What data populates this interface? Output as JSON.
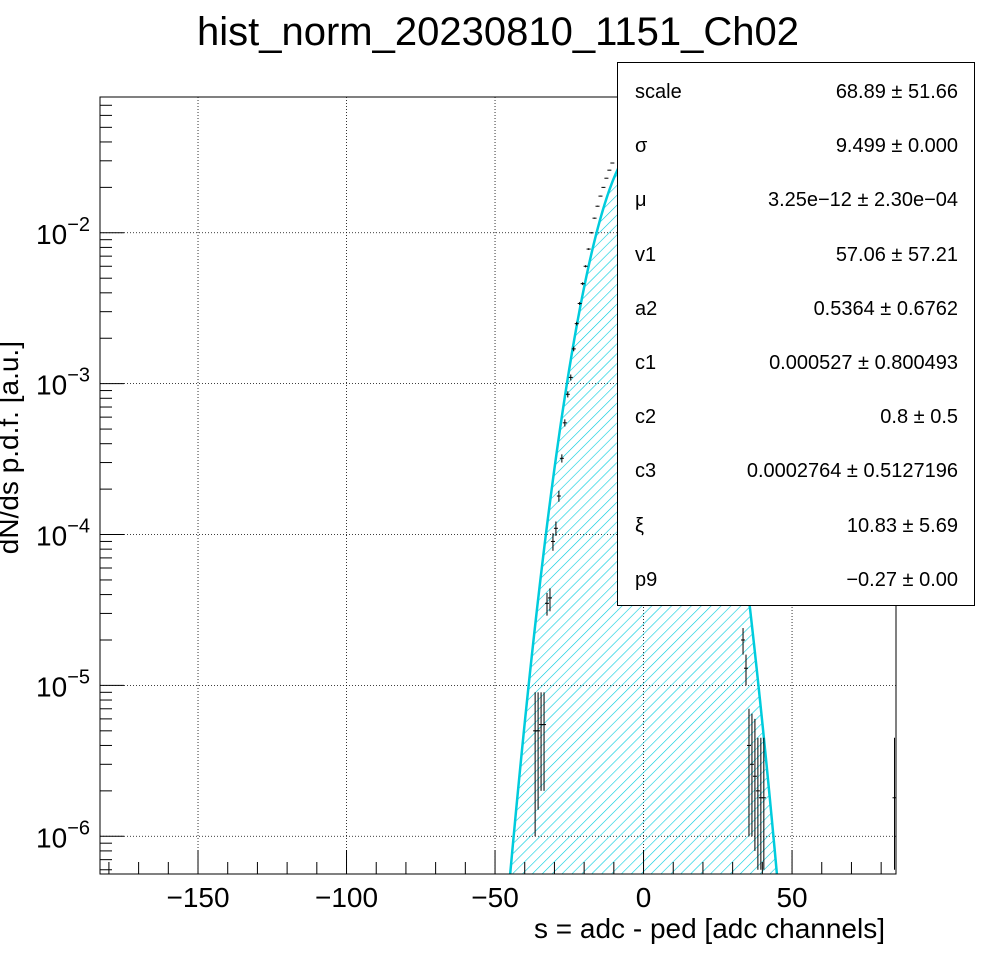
{
  "chart_data": {
    "type": "line",
    "title": "hist_norm_20230810_1151_Ch02",
    "xlabel": "s = adc - ped [adc channels]",
    "ylabel": "dN/ds p.d.f. [a.u.]",
    "xlim": [
      -183,
      85
    ],
    "ylim_log10": [
      -6.25,
      -1.1
    ],
    "log_y": true,
    "grid": true,
    "x_ticks": [
      -150,
      -100,
      -50,
      0,
      50
    ],
    "x_tick_labels": [
      "−150",
      "−100",
      "−50",
      "0",
      "50"
    ],
    "y_ticks": [
      {
        "base": "10",
        "exp": "−6",
        "log": -6
      },
      {
        "base": "10",
        "exp": "−5",
        "log": -5
      },
      {
        "base": "10",
        "exp": "−4",
        "log": -4
      },
      {
        "base": "10",
        "exp": "−3",
        "log": -3
      },
      {
        "base": "10",
        "exp": "−2",
        "log": -2
      }
    ],
    "fit_curve": {
      "type": "gaussian",
      "peak": 0.04,
      "mu": 0,
      "sigma": 9.499,
      "color": "#00ccdd",
      "fill": "hatched"
    },
    "data_points": [
      {
        "x": -36.5,
        "y": 5e-06,
        "lo": 1e-06,
        "hi": 9e-06
      },
      {
        "x": -35.5,
        "y": 5e-06,
        "lo": 1.5e-06,
        "hi": 9e-06
      },
      {
        "x": -34.5,
        "y": 5.5e-06,
        "lo": 2e-06,
        "hi": 9e-06
      },
      {
        "x": -33.5,
        "y": 5.5e-06,
        "lo": 2e-06,
        "hi": 9e-06
      },
      {
        "x": -32.5,
        "y": 3.5e-05,
        "lo": 2.9e-05,
        "hi": 4.1e-05
      },
      {
        "x": -31.5,
        "y": 3.8e-05,
        "lo": 3.1e-05,
        "hi": 4.4e-05
      },
      {
        "x": -30.5,
        "y": 9e-05,
        "lo": 7.8e-05,
        "hi": 0.000102
      },
      {
        "x": -29.5,
        "y": 0.00011,
        "lo": 9.8e-05,
        "hi": 0.000122
      },
      {
        "x": -28.5,
        "y": 0.00018,
        "lo": 0.000165,
        "hi": 0.000195
      },
      {
        "x": -27.5,
        "y": 0.00032,
        "lo": 0.0003,
        "hi": 0.00034
      },
      {
        "x": -26.5,
        "y": 0.00055,
        "lo": 0.00052,
        "hi": 0.00058
      },
      {
        "x": -25.5,
        "y": 0.00085,
        "lo": 0.00081,
        "hi": 0.00089
      },
      {
        "x": -24.5,
        "y": 0.0011,
        "lo": 0.00105,
        "hi": 0.00115
      },
      {
        "x": -23.5,
        "y": 0.0017,
        "lo": 0.00164,
        "hi": 0.00176
      },
      {
        "x": -22.5,
        "y": 0.0025,
        "lo": 0.00243,
        "hi": 0.00257
      },
      {
        "x": -21.5,
        "y": 0.0034,
        "lo": 0.00332,
        "hi": 0.00348
      },
      {
        "x": -20.5,
        "y": 0.0046,
        "lo": 0.0045,
        "hi": 0.0047
      },
      {
        "x": -19.5,
        "y": 0.006,
        "lo": 0.0059,
        "hi": 0.0061
      },
      {
        "x": -18.5,
        "y": 0.0078,
        "lo": 0.0077,
        "hi": 0.0079
      },
      {
        "x": -17.5,
        "y": 0.01,
        "lo": 0.0099,
        "hi": 0.0101
      },
      {
        "x": -16.5,
        "y": 0.0125,
        "lo": 0.0124,
        "hi": 0.0126
      },
      {
        "x": -15.5,
        "y": 0.015,
        "lo": 0.0149,
        "hi": 0.0151
      },
      {
        "x": -14.5,
        "y": 0.0175,
        "lo": 0.0174,
        "hi": 0.0176
      },
      {
        "x": -13.5,
        "y": 0.02,
        "lo": 0.0199,
        "hi": 0.0201
      },
      {
        "x": -12.5,
        "y": 0.023,
        "lo": 0.0229,
        "hi": 0.0231
      },
      {
        "x": -11.5,
        "y": 0.026,
        "lo": 0.0259,
        "hi": 0.0261
      },
      {
        "x": -10.5,
        "y": 0.029,
        "lo": 0.0289,
        "hi": 0.0291
      },
      {
        "x": 33.5,
        "y": 2e-05,
        "lo": 1.6e-05,
        "hi": 2.4e-05
      },
      {
        "x": 34.5,
        "y": 1.3e-05,
        "lo": 1e-05,
        "hi": 1.6e-05
      },
      {
        "x": 35.5,
        "y": 4e-06,
        "lo": 1e-06,
        "hi": 7e-06
      },
      {
        "x": 36.5,
        "y": 3e-06,
        "lo": 1e-06,
        "hi": 6.5e-06
      },
      {
        "x": 37.5,
        "y": 2.5e-06,
        "lo": 8e-07,
        "hi": 6e-06
      },
      {
        "x": 38.5,
        "y": 2e-06,
        "lo": 6e-07,
        "hi": 4.5e-06
      },
      {
        "x": 39.5,
        "y": 1.8e-06,
        "lo": 6e-07,
        "hi": 4.5e-06
      },
      {
        "x": 40.5,
        "y": 1.8e-06,
        "lo": 6e-07,
        "hi": 4.5e-06
      },
      {
        "x": 84.5,
        "y": 1.8e-06,
        "lo": 6e-07,
        "hi": 4.5e-06
      }
    ]
  },
  "stats_box": [
    {
      "name": "scale",
      "value": "68.89 ± 51.66"
    },
    {
      "name": "σ",
      "value": "9.499 ± 0.000"
    },
    {
      "name": "μ",
      "value": "3.25e−12 ± 2.30e−04"
    },
    {
      "name": "v1",
      "value": "57.06 ± 57.21"
    },
    {
      "name": "a2",
      "value": "0.5364 ± 0.6762"
    },
    {
      "name": "c1",
      "value": "0.000527 ± 0.800493"
    },
    {
      "name": "c2",
      "value": "0.8 ± 0.5"
    },
    {
      "name": "c3",
      "value": "0.0002764 ± 0.5127196"
    },
    {
      "name": "ξ",
      "value": "10.83 ± 5.69"
    },
    {
      "name": "p9",
      "value": "−0.27 ± 0.00"
    }
  ]
}
